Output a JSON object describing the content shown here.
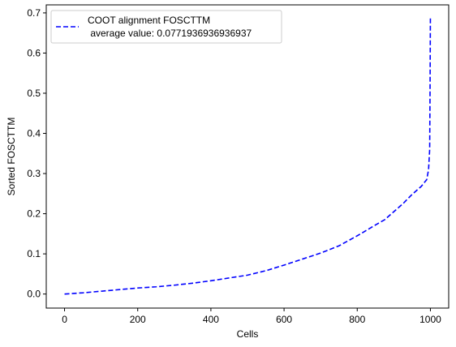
{
  "chart_data": {
    "type": "line",
    "xlabel": "Cells",
    "ylabel": "Sorted FOSCTTM",
    "xlim": [
      -50,
      1050
    ],
    "ylim": [
      -0.035,
      0.72
    ],
    "xticks": [
      0,
      200,
      400,
      600,
      800,
      1000
    ],
    "yticks": [
      0.0,
      0.1,
      0.2,
      0.3,
      0.4,
      0.5,
      0.6,
      0.7
    ],
    "xtick_labels": [
      "0",
      "200",
      "400",
      "600",
      "800",
      "1000"
    ],
    "ytick_labels": [
      "0.0",
      "0.1",
      "0.2",
      "0.3",
      "0.4",
      "0.5",
      "0.6",
      "0.7"
    ],
    "grid": false,
    "legend_position": "top-left",
    "series": [
      {
        "name": "COOT alignment FOSCTTM\n average value: 0.0771936936936937",
        "color": "#0000ff",
        "line_style": "dashed",
        "x": [
          0,
          50,
          100,
          150,
          200,
          250,
          300,
          350,
          400,
          450,
          500,
          550,
          600,
          650,
          700,
          750,
          800,
          850,
          875,
          900,
          925,
          950,
          975,
          990,
          995,
          998,
          999,
          1000
        ],
        "y": [
          0.0,
          0.003,
          0.007,
          0.011,
          0.015,
          0.018,
          0.022,
          0.027,
          0.033,
          0.04,
          0.047,
          0.058,
          0.072,
          0.087,
          0.102,
          0.12,
          0.145,
          0.172,
          0.185,
          0.205,
          0.225,
          0.248,
          0.268,
          0.285,
          0.31,
          0.36,
          0.5,
          0.69
        ]
      }
    ]
  }
}
